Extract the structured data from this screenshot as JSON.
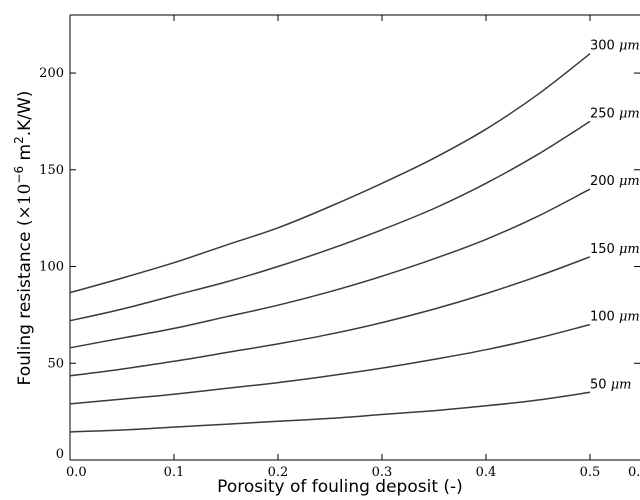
{
  "chart_data": {
    "type": "line",
    "xlabel": "Porosity of fouling deposit (-)",
    "ylabel": {
      "prefix": "Fouling resistance (",
      "times": "×10",
      "exponent": "−6",
      "unit_main": " m",
      "unit_sup": "2",
      "unit_tail": ".K/W)"
    },
    "xlim": [
      0.0,
      0.55
    ],
    "ylim": [
      0,
      230
    ],
    "xticks": [
      {
        "value": 0.0,
        "label": "0.0"
      },
      {
        "value": 0.1,
        "label": "0.1"
      },
      {
        "value": 0.2,
        "label": "0.2"
      },
      {
        "value": 0.3,
        "label": "0.3"
      },
      {
        "value": 0.4,
        "label": "0.4"
      },
      {
        "value": 0.5,
        "label": "0.5"
      }
    ],
    "xtick_partial_label": "0.5",
    "yticks": [
      {
        "value": 0,
        "label": "0"
      },
      {
        "value": 50,
        "label": "50"
      },
      {
        "value": 100,
        "label": "100"
      },
      {
        "value": 150,
        "label": "150"
      },
      {
        "value": 200,
        "label": "200"
      }
    ],
    "grid": false,
    "legend": "inline labels at line ends",
    "x": [
      0.0,
      0.05,
      0.1,
      0.15,
      0.2,
      0.25,
      0.3,
      0.35,
      0.4,
      0.45,
      0.5
    ],
    "series": [
      {
        "name": "50",
        "unit": "μm",
        "values": [
          14.5,
          15.5,
          17,
          18.5,
          20,
          21.5,
          23.5,
          25.5,
          28,
          31,
          35
        ]
      },
      {
        "name": "100",
        "unit": "μm",
        "values": [
          29,
          31.5,
          34,
          37,
          40,
          43.5,
          47.5,
          52,
          57,
          63,
          70
        ]
      },
      {
        "name": "150",
        "unit": "μm",
        "values": [
          43.5,
          47,
          51,
          55.5,
          60,
          65,
          71,
          78,
          86,
          95,
          105
        ]
      },
      {
        "name": "200",
        "unit": "μm",
        "values": [
          58,
          63,
          68,
          74,
          80,
          87,
          95,
          104,
          114,
          126,
          140
        ]
      },
      {
        "name": "250",
        "unit": "μm",
        "values": [
          72,
          78,
          85,
          92,
          100,
          109,
          119,
          130,
          143,
          158,
          175
        ]
      },
      {
        "name": "300",
        "unit": "μm",
        "values": [
          86.5,
          94,
          102,
          111,
          120,
          131,
          143,
          156,
          171,
          189,
          210
        ]
      }
    ]
  }
}
